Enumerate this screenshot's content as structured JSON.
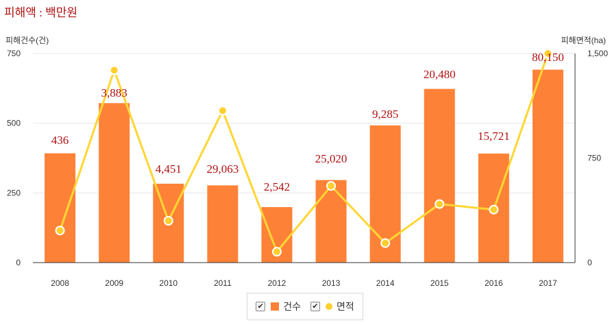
{
  "unit_note": "피해액 : 백만원",
  "legend": {
    "bar_label": "건수",
    "line_label": "면적",
    "bar_checked_glyph": "✔",
    "line_checked_glyph": "✔"
  },
  "colors": {
    "bar": "#fd8237",
    "line": "#ffd633",
    "marker": "#ffcf2d",
    "label": "#b01010"
  },
  "chart_data": {
    "type": "bar",
    "categories": [
      "2008",
      "2009",
      "2010",
      "2011",
      "2012",
      "2013",
      "2014",
      "2015",
      "2016",
      "2017"
    ],
    "left_axis": {
      "title": "피해건수(건)",
      "range": [
        0,
        750
      ],
      "ticks": [
        0,
        250,
        500,
        750
      ]
    },
    "right_axis": {
      "title": "피해면적(ha)",
      "range": [
        0,
        1500
      ],
      "ticks": [
        0,
        750,
        1500
      ],
      "tick_labels": [
        "0",
        "750",
        "1,500"
      ]
    },
    "series": [
      {
        "name": "건수",
        "type": "bar",
        "axis": "left",
        "values": [
          392,
          572,
          283,
          277,
          199,
          296,
          492,
          623,
          391,
          692
        ]
      },
      {
        "name": "면적",
        "type": "line",
        "axis": "right",
        "values": [
          230,
          1380,
          300,
          1090,
          78,
          550,
          140,
          420,
          380,
          1500
        ]
      }
    ],
    "data_labels": [
      "436",
      "3,883",
      "4,451",
      "29,063",
      "2,542",
      "25,020",
      "9,285",
      "20,480",
      "15,721",
      "80,150"
    ],
    "grid": true,
    "legend_position": "bottom"
  }
}
